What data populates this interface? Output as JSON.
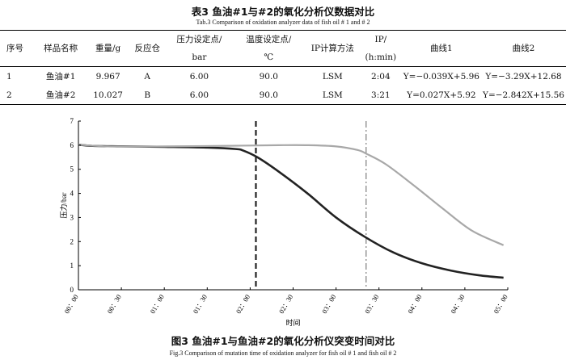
{
  "table": {
    "title": "表3   鱼油#1与#2的氧化分析仪数据对比",
    "subtitle": "Tab.3    Comparison of oxidation analyzer data of fish oil # 1 and # 2",
    "headers": [
      {
        "l1": "序号",
        "l2": ""
      },
      {
        "l1": "样品名称",
        "l2": ""
      },
      {
        "l1": "重量/g",
        "l2": ""
      },
      {
        "l1": "反应仓",
        "l2": ""
      },
      {
        "l1": "压力设定点/",
        "l2": "bar"
      },
      {
        "l1": "温度设定点/",
        "l2": "℃"
      },
      {
        "l1": "IP计算方法",
        "l2": ""
      },
      {
        "l1": "IP/",
        "l2": "(h:min)"
      },
      {
        "l1": "曲线1",
        "l2": ""
      },
      {
        "l1": "曲线2",
        "l2": ""
      }
    ],
    "rows": [
      [
        "1",
        "鱼油#1",
        "9.967",
        "A",
        "6.00",
        "90.0",
        "LSM",
        "2:04",
        "Y=−0.039X+5.96",
        "Y=−3.29X+12.68"
      ],
      [
        "2",
        "鱼油#2",
        "10.027",
        "B",
        "6.00",
        "90.0",
        "LSM",
        "3:21",
        "Y=0.027X+5.92",
        "Y=−2.842X+15.56"
      ]
    ]
  },
  "figure": {
    "title": "图3   鱼油#1与鱼油#2的氧化分析仪突变时间对比",
    "subtitle": "Fig.3    Comparison of mutation time of oxidation analyzer for fish oil # 1 and fish oil # 2"
  },
  "chart_data": {
    "type": "line",
    "xlabel": "时间",
    "ylabel": "压力/bar",
    "xlim": [
      0,
      300
    ],
    "ylim": [
      0,
      7
    ],
    "x_ticks": [
      "00：00",
      "00：30",
      "01：00",
      "01：30",
      "02：00",
      "02：30",
      "03：00",
      "03：30",
      "04：00",
      "04：30",
      "05：00"
    ],
    "y_ticks": [
      "0",
      "1",
      "2",
      "3",
      "4",
      "5",
      "6",
      "7"
    ],
    "series": [
      {
        "color": "#222222",
        "x": [
          0,
          10,
          30,
          60,
          90,
          110,
          115,
          125,
          140,
          160,
          180,
          200,
          220,
          240,
          260,
          280,
          297
        ],
        "y": [
          6.02,
          5.97,
          5.95,
          5.93,
          5.9,
          5.84,
          5.78,
          5.5,
          4.9,
          4.0,
          3.0,
          2.2,
          1.55,
          1.1,
          0.8,
          0.6,
          0.5
        ]
      },
      {
        "color": "#a8a8a8",
        "x": [
          0,
          20,
          60,
          100,
          140,
          160,
          180,
          195,
          201,
          215,
          235,
          255,
          275,
          297
        ],
        "y": [
          6.02,
          5.95,
          5.95,
          5.97,
          6.0,
          6.0,
          5.95,
          5.8,
          5.65,
          5.2,
          4.3,
          3.35,
          2.45,
          1.85
        ]
      }
    ],
    "vlines": [
      {
        "x": 124,
        "color": "#222222",
        "style": "dashed"
      },
      {
        "x": 201,
        "color": "#888888",
        "style": "dashdot"
      }
    ],
    "grid": false
  }
}
